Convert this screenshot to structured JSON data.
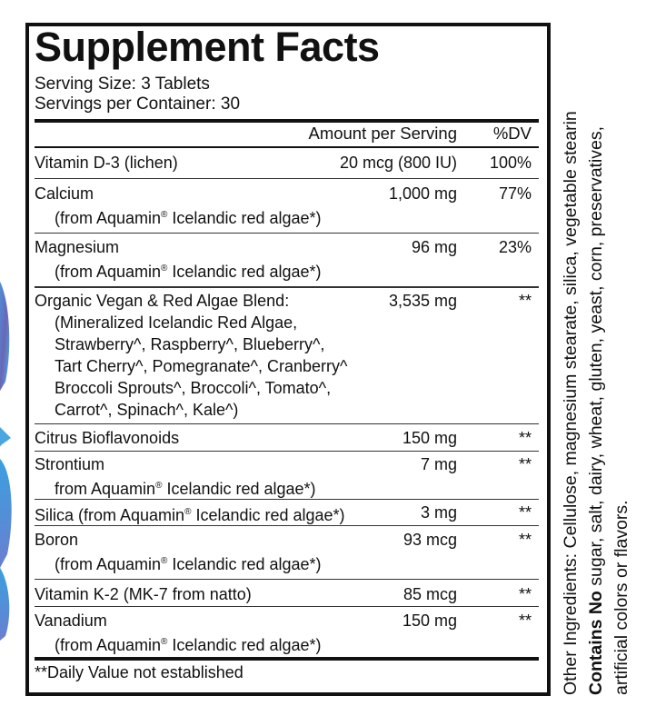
{
  "panel": {
    "title": "Supplement Facts",
    "serving_size": "Serving Size: 3 Tablets",
    "servings_per_container": "Servings per Container: 30",
    "col_amount": "Amount per Serving",
    "col_dv": "%DV",
    "rows": [
      {
        "name": "Vitamin D-3 (lichen)",
        "amount": "20 mcg (800 IU)",
        "dv": "100%"
      },
      {
        "name": "Calcium",
        "sub": [
          "(from Aquamin® Icelandic red algae*)"
        ],
        "amount": "1,000 mg",
        "dv": "77%"
      },
      {
        "name": "Magnesium",
        "sub": [
          "(from Aquamin® Icelandic red algae*)"
        ],
        "amount": "96 mg",
        "dv": "23%"
      },
      {
        "name": "Organic Vegan & Red Algae Blend:",
        "sub": [
          "(Mineralized Icelandic Red Algae,",
          "Strawberry^, Raspberry^, Blueberry^,",
          "Tart Cherry^, Pomegranate^, Cranberry^",
          "Broccoli Sprouts^, Broccoli^, Tomato^,",
          "Carrot^, Spinach^, Kale^)"
        ],
        "amount": "3,535 mg",
        "dv": "**"
      },
      {
        "name": "Citrus Bioflavonoids",
        "amount": "150 mg",
        "dv": "**"
      },
      {
        "name": "Strontium",
        "sub": [
          "from Aquamin® Icelandic red algae*)"
        ],
        "amount": "7 mg",
        "dv": "**"
      },
      {
        "name": "Silica (from Aquamin® Icelandic red algae*)",
        "amount": "3 mg",
        "dv": "**"
      },
      {
        "name": "Boron",
        "sub": [
          "(from Aquamin® Icelandic red algae*)"
        ],
        "amount": "93 mcg",
        "dv": "**"
      },
      {
        "name": "Vitamin K-2 (MK-7 from natto)",
        "amount": "85 mcg",
        "dv": "**"
      },
      {
        "name": "Vanadium",
        "sub": [
          "(from Aquamin® Icelandic red algae*)"
        ],
        "amount": "150 mg",
        "dv": "**"
      }
    ],
    "footnote": "**Daily Value not established"
  },
  "side": {
    "other_ingredients": "Other Ingredients: Cellulose, magnesium stearate, silica, vegetable stearin",
    "contains_no_label": "Contains No",
    "contains_no_text": " sugar, salt, dairy, wheat, gluten, yeast, corn, preservatives,",
    "contains_no_text2": "artificial colors or flavors."
  },
  "colors": {
    "ink": "#111111",
    "leaf_light": "#5fb3e3",
    "leaf_dark": "#5a5fb0"
  }
}
